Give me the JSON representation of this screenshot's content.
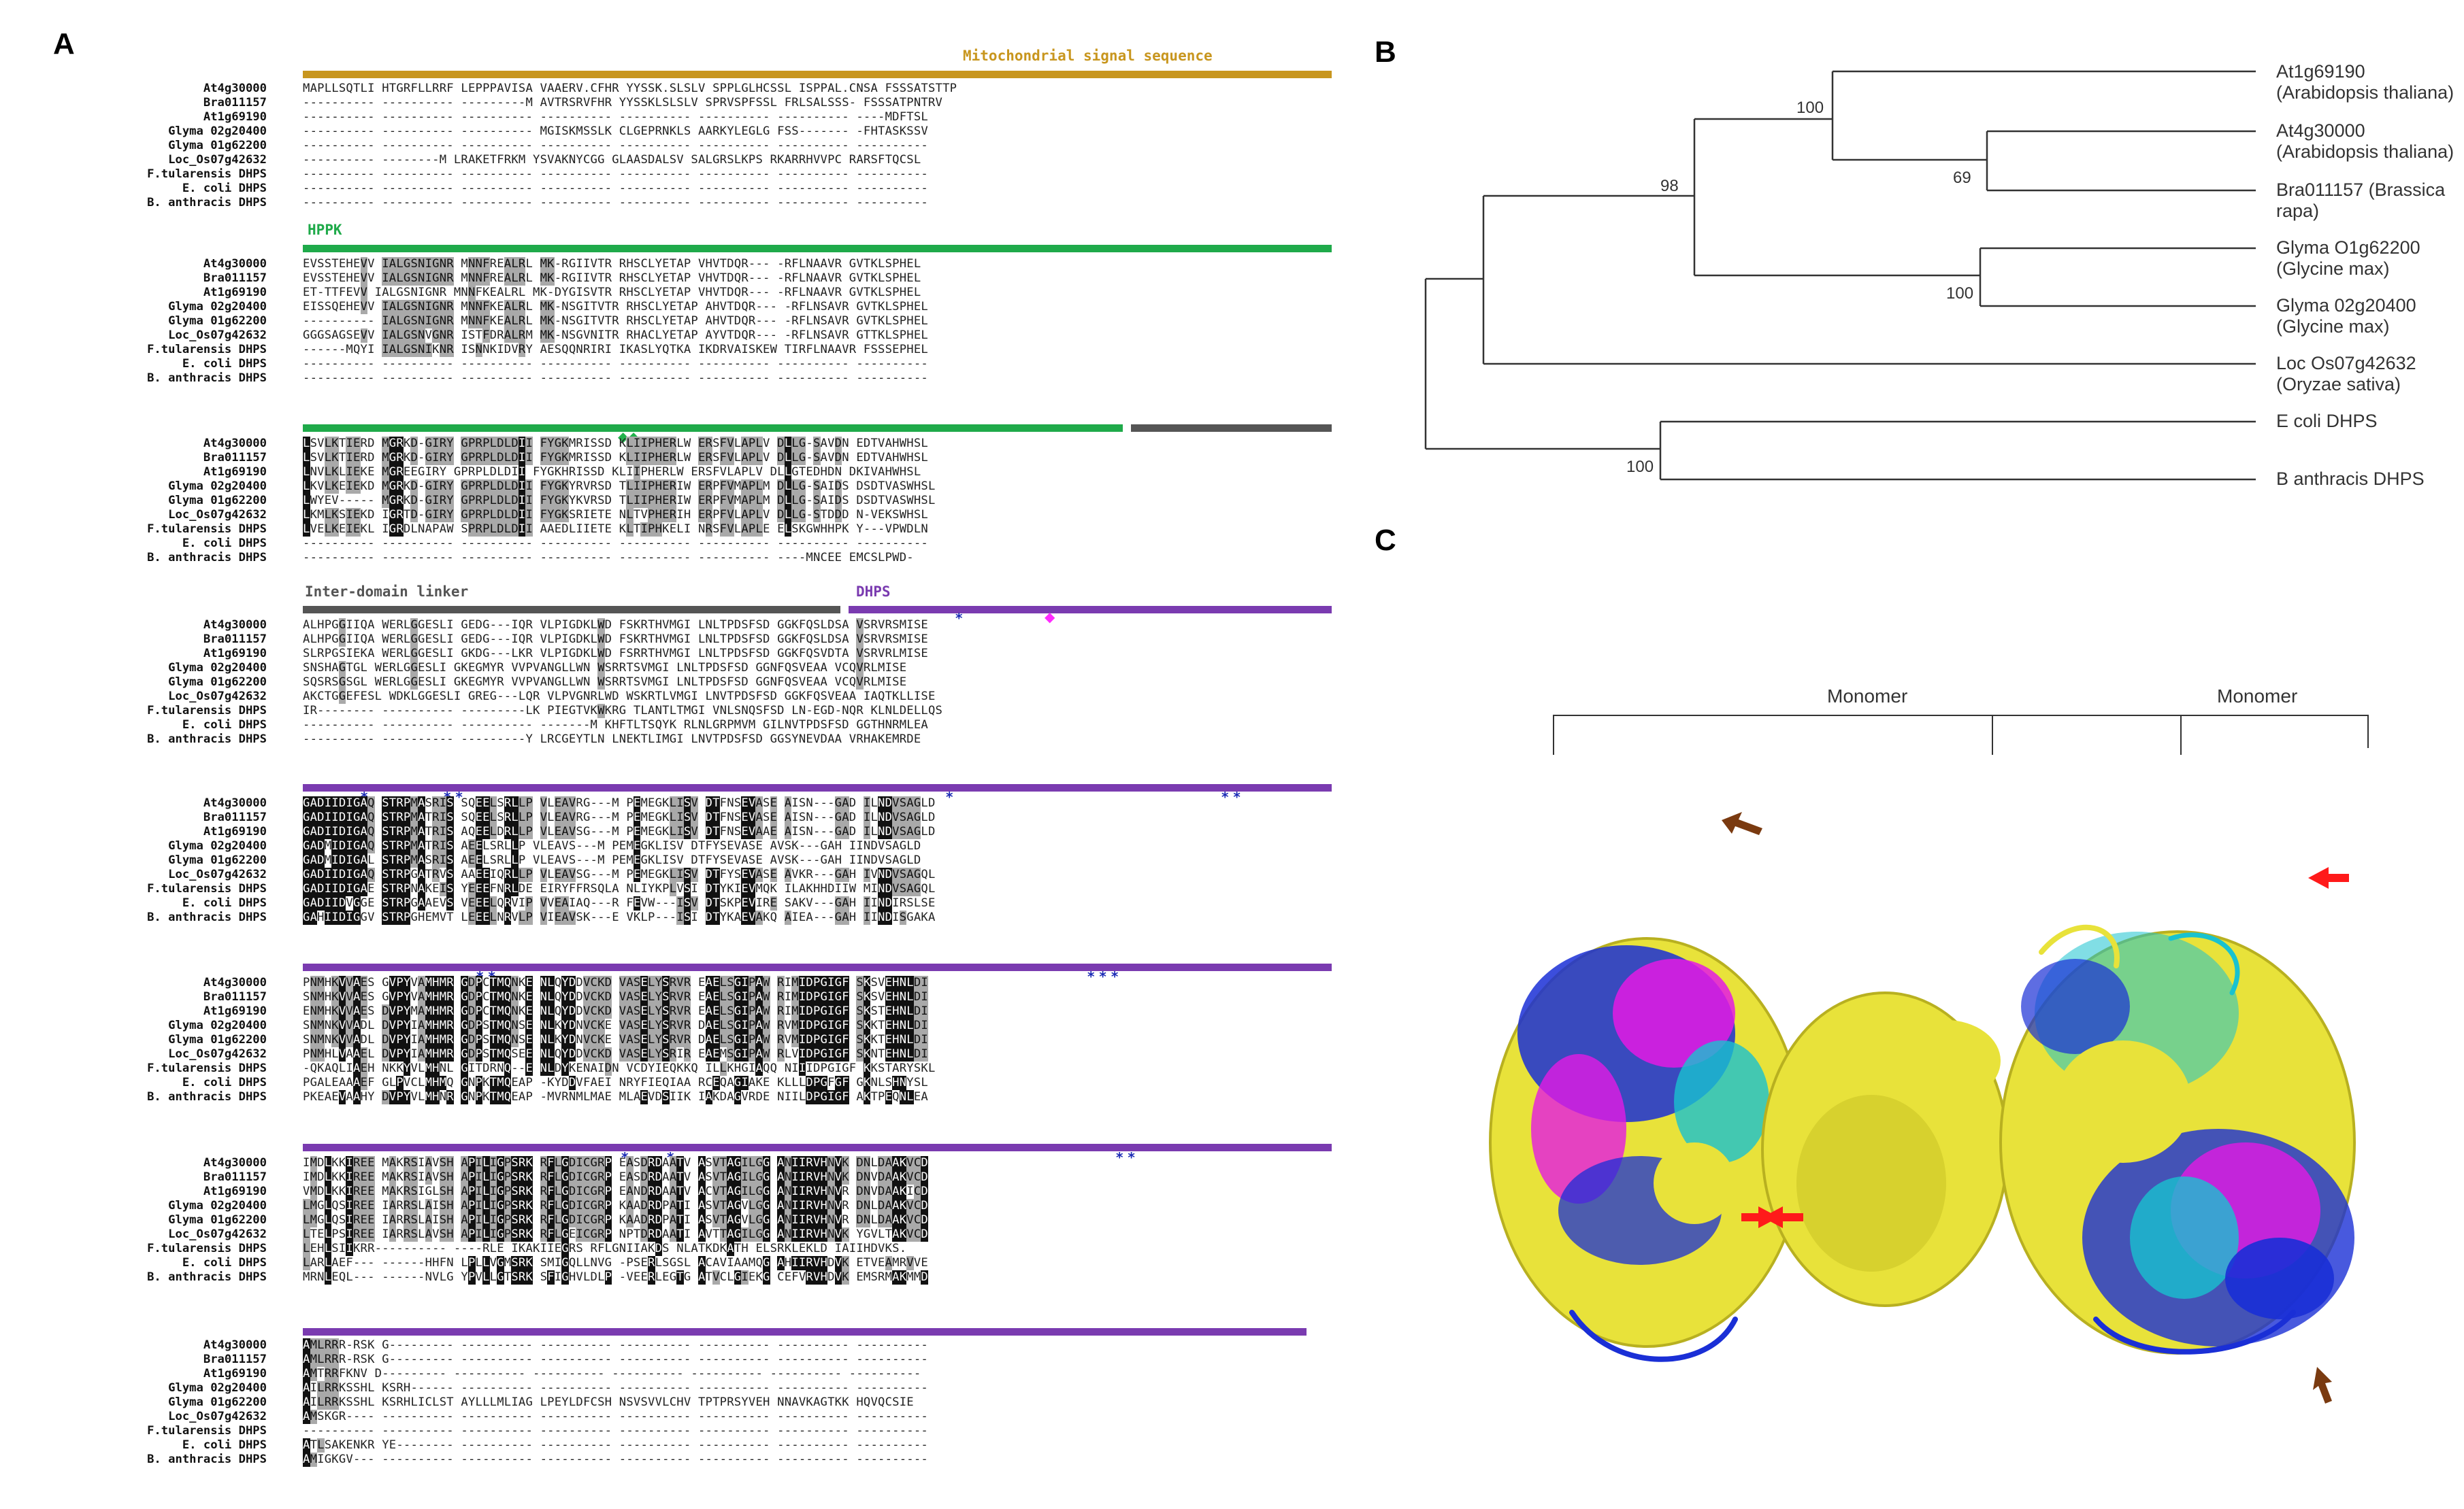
{
  "figure": {
    "panels": {
      "a": "A",
      "b": "B",
      "c": "C"
    }
  },
  "alignment": {
    "domains": {
      "mito": "Mitochondrial signal sequence",
      "hppk": "HPPK",
      "linker": "Inter-domain linker",
      "dhps": "DHPS"
    },
    "colors": {
      "mito": "#c8961e",
      "hppk": "#1faa4a",
      "linker": "#555555",
      "dhps": "#7a3bb0",
      "star": "#1b2bb5",
      "diamond_green": "#22b24c",
      "diamond_magenta": "#ff2aff"
    },
    "blocks": [
      {
        "names": [
          "At4g30000",
          "Bra011157",
          "At1g69190",
          "Glyma 02g20400",
          "Glyma 01g62200",
          "Loc_Os07g42632",
          "F.tularensis DHPS",
          "E. coli DHPS",
          "B. anthracis DHPS"
        ],
        "rows": [
          "MAPLLSQTLI HTGRFLLRRF LEPPPAVISA VAAERV.CFHR YYSSK.SLSLV SPPLGLHCSSL ISPPAL.CNSA FSSSATSTTP",
          "---------- ---------- ---------M AVTRSRVFHR YYSSKLSLSLV SPRVSPFSSL FRLSALSSS- FSSSATPNTRV",
          "---------- ---------- ---------- ---------- ---------- ---------- ---------- ----MDFTSL",
          "---------- ---------- ---------- MGISKMSSLK CLGEPRNKLS AARKYLEGLG FSS------- -FHTASKSSV",
          "---------- ---------- ---------- ---------- ---------- ---------- ---------- ----------",
          "---------- --------M LRAKETFRKM YSVAKNYCGG GLAASDALSV SALGRSLKPS RKARRHVVPC RARSFTQCSL",
          "---------- ---------- ---------- ---------- ---------- ---------- ---------- ----------",
          "---------- ---------- ---------- ---------- ---------- ---------- ---------- ----------",
          "---------- ---------- ---------- ---------- ---------- ---------- ---------- ----------"
        ]
      },
      {
        "names": [
          "At4g30000",
          "Bra011157",
          "At1g69190",
          "Glyma 02g20400",
          "Glyma 01g62200",
          "Loc_Os07g42632",
          "F.tularensis DHPS",
          "E. coli DHPS",
          "B. anthracis DHPS"
        ],
        "rows": [
          "EVSSTEHEVV IALGSNIGNR MNNFREALRL MK-RGIIVTR RHSCLYETAP VHVTDQR--- -RFLNAAVR GVTKLSPHEL",
          "EVSSTEHEVV IALGSNIGNR MNNFREALRL MK-RGIIVTR RHSCLYETAP VHVTDQR--- -RFLNAAVR GVTKLSPHEL",
          "ET-TTFEVV IALGSNIGNR MNNFKEALRL MK-DYGISVTR RHSCLYETAP VHVTDQR--- -RFLNAAVR GVTKLSPHEL",
          "EISSQEHEVV IALGSNIGNR MNNFKEALRL MK-NSGITVTR RHSCLYETAP AHVTDQR--- -RFLNSAVR GVTKLSPHEL",
          "---------- IALGSNIGNR MNNFKEALRL MK-NSGITVTR RHSCLYETAP AHVTDQR--- -RFLNSAVR GVTKLSPHEL",
          "GGGSAGSEVV IALGSNVGNR ISTFDRALRM MK-NSGVNITR RHACLYETAP AYVTDQR--- -RFLNSAVR GTTKLSPHEL",
          "------MQYI IALGSNIKNR ISNNKIDVRY AESQQNRIRI IKASLYQTKA IKDRVAISKEW TIRFLNAAVR FSSSEPHEL",
          "---------- ---------- ---------- ---------- ---------- ---------- ---------- ----------",
          "---------- ---------- ---------- ---------- ---------- ---------- ---------- ----------"
        ]
      },
      {
        "names": [
          "At4g30000",
          "Bra011157",
          "At1g69190",
          "Glyma 02g20400",
          "Glyma 01g62200",
          "Loc_Os07g42632",
          "F.tularensis DHPS",
          "E. coli DHPS",
          "B. anthracis DHPS"
        ],
        "rows": [
          "LSVLKTIERD MGRKD-GIRY GPRPLDLDII FYGKMRISSD KLIIPHERLW ERSFVLAPLV DLLG-SAVDN EDTVAHWHSL",
          "LSVLKTIERD MGRKD-GIRY GPRPLDLDII FYGKMRISSD KLIIPHERLW ERSFVLAPLV DLLG-SAVDN EDTVAHWHSL",
          "LNVLKLIEKE MGREEGIRY GPRPLDLDII FYGKHRISSD KLIIPHERLW ERSFVLAPLV DLLGTEDHDN DKIVAHWHSL",
          "LKVLKEIEKD MGRKD-GIRY GPRPLDLDII FYGKYRVRSD TLIIPHERIW ERPFVMAPLM DLLG-SAIDS DSDTVASWHSL",
          "LWYEV----- MGRKD-GIRY GPRPLDLDII FYGKYKVRSD TLIIPHERIW ERPFVMAPLM DLLG-SAIDS DSDTVASWHSL",
          "LKMLKSIEKD IGRTD-GIRY GPRPLDLDII FYGKSRIETE NLTVPHERIH ERPFVLAPLV DLLG-STDDD N-VEKSWHSL",
          "LVELKEIEKL IGRDLNAPAW SPRPLDLDII AAEDLIIETE KLTIPHKELI NRSFVLAPLE ELSKGWHHPK Y---VPWDLN",
          "---------- ---------- ---------- ---------- ---------- ---------- ---------- ----------",
          "---------- ---------- ---------- ---------- ---------- ---------- ----MNCEE EMCSLPWD-"
        ]
      },
      {
        "names": [
          "At4g30000",
          "Bra011157",
          "At1g69190",
          "Glyma 02g20400",
          "Glyma 01g62200",
          "Loc_Os07g42632",
          "F.tularensis DHPS",
          "E. coli DHPS",
          "B. anthracis DHPS"
        ],
        "rows": [
          "ALHPGGIIQA WERLGGESLI GEDG---IQR VLPIGDKLWD FSKRTHVMGI LNLTPDSFSD GGKFQSLDSA VSRVRSMISE",
          "ALHPGGIIQA WERLGGESLI GEDG---IQR VLPIGDKLWD FSKRTHVMGI LNLTPDSFSD GGKFQSLDSA VSRVRSMISE",
          "SLRPGSIEKA WERLGGESLI GKDG---LKR VLPIGDKLWD FSRRTHVMGI LNLTPDSFSD GGKFQSVDTA VSRVRLMISE",
          "SNSHAGTGL WERLGGESLI GKEGMYR VVPVANGLLWN WSRRTSVMGI LNLTPDSFSD GGNFQSVEAA VCQVRLMISE",
          "SQSRSGSGL WERLGGESLI GKEGMYR VVPVANGLLWN WSRRTSVMGI LNLTPDSFSD GGNFQSVEAA VCQVRLMISE",
          "AKCTGGEFESL WDKLGGESLI GREG---LQR VLPVGNRLWD WSKRTLVMGI LNVTPDSFSD GGKFQSVEAA IAQTKLLISE",
          "IR-------- ---------- ---------LK PIEGTVKWKRG TLANTLTMGI VNLSNQSFSD LN-EGD-NQR KLNLDELLQS",
          "---------- ---------- ---------- -------M KHFTLTSQYK RLNLGRPMVM GILNVTPDSFSD GGTHNRMLEA",
          "---------- ---------- ---------Y LRCGEYTLN LNEKTLIMGI LNVTPDSFSD GGSYNEVDAA VRHAKEMRDE"
        ]
      },
      {
        "names": [
          "At4g30000",
          "Bra011157",
          "At1g69190",
          "Glyma 02g20400",
          "Glyma 01g62200",
          "Loc_Os07g42632",
          "F.tularensis DHPS",
          "E. coli DHPS",
          "B. anthracis DHPS"
        ],
        "rows": [
          "GADIIDIGAQ STRPMASRIS SQEELSRLLP VLEAVRG---M PEMEGKLISV DTFNSEVASE AISN---GAD ILNDVSAGLD",
          "GADIIDIGAQ STRPMATRIS SQEELSRLLP VLEAVRG---M PEMEGKLISV DTFNSEVASE AISN---GAD ILNDVSAGLD",
          "GADIIDIGAQ STRPMATRIS AQEELDRLLP VLEAVSG---M PEMEGKLISV DTFNSEVAAE AISN---GAD ILNDVSAGLD",
          "GADMIDIGAQ STRPMATRIS AEELSRLLP VLEAVS---M PEMEGKLISV DTFYSEVASE AVSK---GAH IINDVSAGLD",
          "GADMIDIGAL STRPMASRIS AEELSRLLP VLEAVS---M PEMEGKLISV DTFYSEVASE AVSK---GAH IINDVSAGLD",
          "GADIIDIGAQ STRPGATRVS AAEEIQRLLP VLEAVSG---M PEMEGKLISV DTFYSEVASE AVKR---GAH IVNDVSAGQL",
          "GADIIDIGAE STRPNAKEIS YEEEFNRLDE EIRYFFRSQLA NLIYKPLVSI DTYKIEVMQK ILAKHHDIIW MINDVSAGQL",
          "GADIIDVGGE STRPGAAEVS VEEELQRVIP VVEAIAQ---R FEVW---ISV DTSKPEVIRE SAKV---GAH IINDIRSLSE",
          "GAHIIDIGGV STRPGHEMVT LEEELNRVLP VIEAVSK---E VKLP---ISI DTYKAEVAKQ AIEA---GAH IINDISGAKA"
        ]
      },
      {
        "names": [
          "At4g30000",
          "Bra011157",
          "At1g69190",
          "Glyma 02g20400",
          "Glyma 01g62200",
          "Loc_Os07g42632",
          "F.tularensis DHPS",
          "E. coli DHPS",
          "B. anthracis DHPS"
        ],
        "rows": [
          "PNMHKVVAES GVPYVAMHMR GDPCTMQNKE NLQYDDVCKD VASELYSRVR EAELSGIPAW RIMIDPGIGF SKSVEHNLDI",
          "SNMHKVVAES GVPYVAMHMR GDPCTMQNKE NLQYDDVCKD VASELYSRVR EAELSGIPAW RIMIDPGIGF SKSVEHNLDI",
          "ENMHKVVAES DVPYMAMHMR GDPCTMQNKE NLQYDDVCKD VASELYSRVR EAELSGIPAW RIMIDPGIGF SKSTEHNLDI",
          "SNMNKVVADL DVPYIAMHMR GDPSTMQNSE NLKYDNVCKE VASELYSRVR DAELSGIPAW RVMIDPGIGF SKKTEHNLDI",
          "SNMNKVVADL DVPYIAMHMR GDPSTMQNSE NLKYDNVCKE VASELYSRVR DAELSGIPAW RVMIDPGIGF SKKTEHNLDI",
          "PNMHLVAAEL DVPYIAMHMR GDPSTMQSEE NLQYDDVCKD VASELYSRIR EAEMSGIPAW RLVIDPGIGF SKNTEHNLDI",
          "-QKAQLIAEH NKKYVLMHNL GITDRNQ--E NLDYKENAIDN VCDYIEQKKQ ILLKHGIAQQ NIIIDPGIGF KKSTARYSKL",
          "PGALEAAAEF GLPVCLMHMQ GNPKTMQEAP -KYDDVFAEI NRYFIEQIAA RCEQAGIAKE KLLLDPGFGF GKNLSHNYSL",
          "PKEAEVAAHY DVPYVLMHNR GNPKTMQEAP -MVRNMLMAE MLAEVDSIIK IAKDAGVRDE NIILDPGIGF AKTPEQNLEA"
        ]
      },
      {
        "names": [
          "At4g30000",
          "Bra011157",
          "At1g69190",
          "Glyma 02g20400",
          "Glyma 01g62200",
          "Loc_Os07g42632",
          "F.tularensis DHPS",
          "E. coli DHPS",
          "B. anthracis DHPS"
        ],
        "rows": [
          "IMDLKKIREE MAKRSIAVSH APILIGPSRK RFLGDICGRP EASDRDAATV ASVTAGILGG ANIIRVHNVK DNLDAAKVCD",
          "IMDLKKIREE MAKRSIAVSH APILIGPSRK RFLGDICGRP EASDRDAATV ASVTAGILGG ANIIRVHNVK DNVDAAKVCD",
          "VMDLKKIREE MAKRSIGLSH APILIGPSRK RFLGDICGRP EANDRDAATV ACVTAGILGG ANIIRVHNVR DNVDAAKICD",
          "LMGLQSIREE IARRSLAISH APILIGPSRK RFLGDICGRP KAADRDPATI ASVTAGVLGG ANIIRVHNVR DNLDAAKVCD",
          "LMGLQSIREE IARRSLAISH APILIGPSRK RFLGDICGRP KAADRDPATI ASVTAGVLGG ANIIRVHNVR DNLDAAKVCD",
          "LTELPSIREE IARRSLAVSH APILIGPSRK RFLGEICGRP NPTDRDAATI AVTTAGILGG ANIIRVHNVK YGVLTAKVCD",
          "LEHLSIIKRR---------- ----RLE IKAKIIEGRS RFLGNIIAKDS NLATKDKATH ELSRKLEKLD IAIIHDVKS.",
          "LARLAEF--- ------HHFN LPLLVGMSRK SMIGQLLNVG -PSERLSGSL ACAVIAAMQG AHIIRVHDVK ETVEAMRVVE",
          "MRNLEQL--- ------NVLG YPVLLGTSRK SFIGHVLDLP -VEERLEGTG ATVCLGIEKG CEFVRVHDVK EMSRMAKMMD"
        ]
      },
      {
        "names": [
          "At4g30000",
          "Bra011157",
          "At1g69190",
          "Glyma 02g20400",
          "Glyma 01g62200",
          "Loc_Os07g42632",
          "F.tularensis DHPS",
          "E. coli DHPS",
          "B. anthracis DHPS"
        ],
        "rows": [
          "AMLRRR-RSK G--------- ---------- ---------- ---------- ---------- ---------- ----------",
          "AMLRRR-RSK G--------- ---------- ---------- ---------- ---------- ---------- ----------",
          "AMTRRFKNV D--------- ---------- ---------- ---------- ---------- ---------- ----------",
          "AILRRKSSHL KSRH------ ---------- ---------- ---------- ---------- ---------- ----------",
          "AILRRKSSHL KSRHLICLST AYLLLMLIAG LPEYLDFCSH NSVSVVLCHV TPTPRSYVEH NNAVKAGTKK HQVQCSIE",
          "AMSKGR---- ---------- ---------- ---------- ---------- ---------- ---------- ----------",
          "---------- ---------- ---------- ---------- ---------- ---------- ---------- ----------",
          "ATLSAKENKR YE-------- ---------- ---------- ---------- ---------- ---------- ----------",
          "AMIGKGV--- ---------- ---------- ---------- ---------- ---------- ---------- ----------"
        ]
      }
    ]
  },
  "tree": {
    "leaves": [
      "At1g69190 (Arabidopsis thaliana)",
      "At4g30000 (Arabidopsis thaliana)",
      "Bra011157 (Brassica rapa)",
      "Glyma O1g62200 (Glycine max)",
      "Glyma 02g20400 (Glycine max)",
      "Loc Os07g42632 (Oryzae sativa)",
      "E coli DHPS",
      "B anthracis DHPS"
    ],
    "bootstrap": [
      "100",
      "69",
      "98",
      "100",
      "100"
    ]
  },
  "structure": {
    "monomer_left": "Monomer",
    "monomer_right": "Monomer",
    "colors": {
      "yellow": "#e8e23a",
      "blue": "#1a2fd6",
      "magenta": "#e41ae4",
      "cyan": "#19c2cf",
      "red_arrow": "#ff1a1a",
      "brown_arrow": "#7a3a10"
    }
  }
}
